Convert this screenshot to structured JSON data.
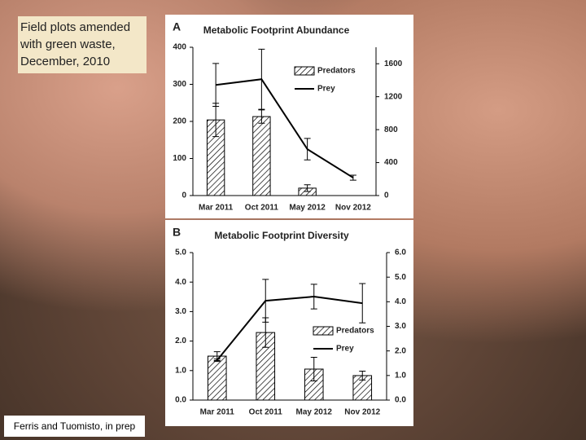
{
  "slide": {
    "caption": "Field plots amended with green waste, December, 2010",
    "credit": "Ferris and Tuomisto, in prep"
  },
  "chart_data": [
    {
      "type": "bar",
      "panel": "A",
      "title": "Metabolic Footprint Abundance",
      "categories": [
        "Mar 2011",
        "Oct 2011",
        "May 2012",
        "Nov 2012"
      ],
      "series": [
        {
          "name": "Predators",
          "type": "bar",
          "color": "#000000",
          "values": [
            204,
            213,
            20,
            0
          ],
          "errors": [
            45,
            18,
            9,
            0
          ]
        },
        {
          "name": "Prey",
          "type": "line",
          "axis": "y2",
          "color": "#000000",
          "values": [
            1343,
            1412,
            563,
            217
          ],
          "errors": [
            260,
            365,
            130,
            30
          ]
        }
      ],
      "ylim": [
        0,
        400
      ],
      "yticks": [
        0,
        100,
        200,
        300,
        400
      ],
      "y2lim": [
        0,
        1800
      ],
      "y2ticks": [
        0,
        400,
        800,
        1200,
        1600
      ],
      "legend": "upper right",
      "grid": false
    },
    {
      "type": "bar",
      "panel": "B",
      "title": "Metabolic Footprint Diversity",
      "categories": [
        "Mar 2011",
        "Oct 2011",
        "May 2012",
        "Nov 2012"
      ],
      "series": [
        {
          "name": "Predators",
          "type": "bar",
          "color": "#000000",
          "values": [
            1.49,
            2.29,
            1.05,
            0.83
          ],
          "errors": [
            0.15,
            0.5,
            0.4,
            0.15
          ]
        },
        {
          "name": "Prey",
          "type": "line",
          "axis": "y2",
          "color": "#000000",
          "values": [
            1.62,
            4.04,
            4.21,
            3.94
          ],
          "errors": [
            0.05,
            0.87,
            0.5,
            0.8
          ]
        }
      ],
      "ylim": [
        0,
        5
      ],
      "yticks": [
        {
          "value": 0,
          "label": "0.0"
        },
        {
          "value": 1,
          "label": "1.0"
        },
        {
          "value": 2,
          "label": "2.0"
        },
        {
          "value": 3,
          "label": "3.0"
        },
        {
          "value": 4,
          "label": "4.0"
        },
        {
          "value": 5,
          "label": "5.0"
        }
      ],
      "y2lim": [
        0,
        6
      ],
      "y2ticks": [
        {
          "value": 0,
          "label": "0.0"
        },
        {
          "value": 1,
          "label": "1.0"
        },
        {
          "value": 2,
          "label": "2.0"
        },
        {
          "value": 3,
          "label": "3.0"
        },
        {
          "value": 4,
          "label": "4.0"
        },
        {
          "value": 5,
          "label": "5.0"
        },
        {
          "value": 6,
          "label": "6.0"
        }
      ],
      "legend": "center right",
      "grid": false
    }
  ]
}
